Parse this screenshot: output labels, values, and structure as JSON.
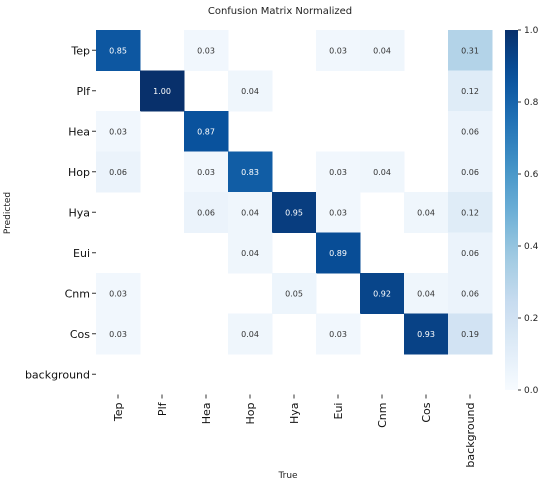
{
  "chart_data": {
    "type": "heatmap",
    "title": "Confusion Matrix Normalized",
    "xlabel": "True",
    "ylabel": "Predicted",
    "x_categories": [
      "Tep",
      "Plf",
      "Hea",
      "Hop",
      "Hya",
      "Eui",
      "Cnm",
      "Cos",
      "background"
    ],
    "y_categories": [
      "Tep",
      "Plf",
      "Hea",
      "Hop",
      "Hya",
      "Eui",
      "Cnm",
      "Cos",
      "background"
    ],
    "values": [
      [
        0.85,
        null,
        0.03,
        null,
        null,
        0.03,
        0.04,
        null,
        0.31
      ],
      [
        null,
        1.0,
        null,
        0.04,
        null,
        null,
        null,
        null,
        0.12
      ],
      [
        0.03,
        null,
        0.87,
        null,
        null,
        null,
        null,
        null,
        0.06
      ],
      [
        0.06,
        null,
        0.03,
        0.83,
        null,
        0.03,
        0.04,
        null,
        0.06
      ],
      [
        null,
        null,
        0.06,
        0.04,
        0.95,
        0.03,
        null,
        0.04,
        0.12
      ],
      [
        null,
        null,
        null,
        0.04,
        null,
        0.89,
        null,
        null,
        0.06
      ],
      [
        0.03,
        null,
        null,
        null,
        0.05,
        null,
        0.92,
        0.04,
        0.06
      ],
      [
        0.03,
        null,
        null,
        0.04,
        null,
        0.03,
        null,
        0.93,
        0.19
      ],
      [
        null,
        null,
        null,
        null,
        null,
        null,
        null,
        null,
        null
      ]
    ],
    "value_format": "2 decimals",
    "colorbar": {
      "range": [
        0.0,
        1.0
      ],
      "ticks": [
        "0.0",
        "0.2",
        "0.4",
        "0.6",
        "0.8",
        "1.0"
      ]
    },
    "colormap": "Blues",
    "grid": false
  }
}
